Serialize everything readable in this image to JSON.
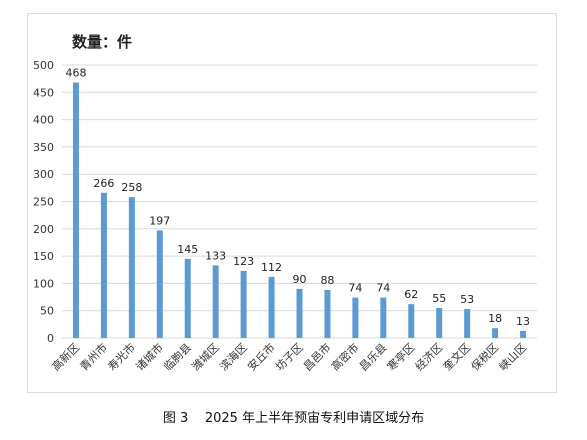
{
  "chart_data": {
    "type": "bar",
    "unit_label": "数量：件",
    "categories": [
      "高新区",
      "青州市",
      "寿光市",
      "诸城市",
      "临朐县",
      "潍城区",
      "滨海区",
      "安丘市",
      "坊子区",
      "昌邑市",
      "高密市",
      "昌乐县",
      "寒亭区",
      "经济区",
      "奎文区",
      "保税区",
      "峡山区"
    ],
    "values": [
      468,
      266,
      258,
      197,
      145,
      133,
      123,
      112,
      90,
      88,
      74,
      74,
      62,
      55,
      53,
      18,
      13
    ],
    "ylim": [
      0,
      500
    ],
    "yticks": [
      "0",
      "50",
      "100",
      "150",
      "200",
      "250",
      "300",
      "350",
      "400",
      "450",
      "500"
    ],
    "grid": true,
    "bar_color": "#5b9bd5",
    "grid_color": "#d9d9d9"
  },
  "caption": "图 3    2025 年上半年预宙专利申请区域分布"
}
